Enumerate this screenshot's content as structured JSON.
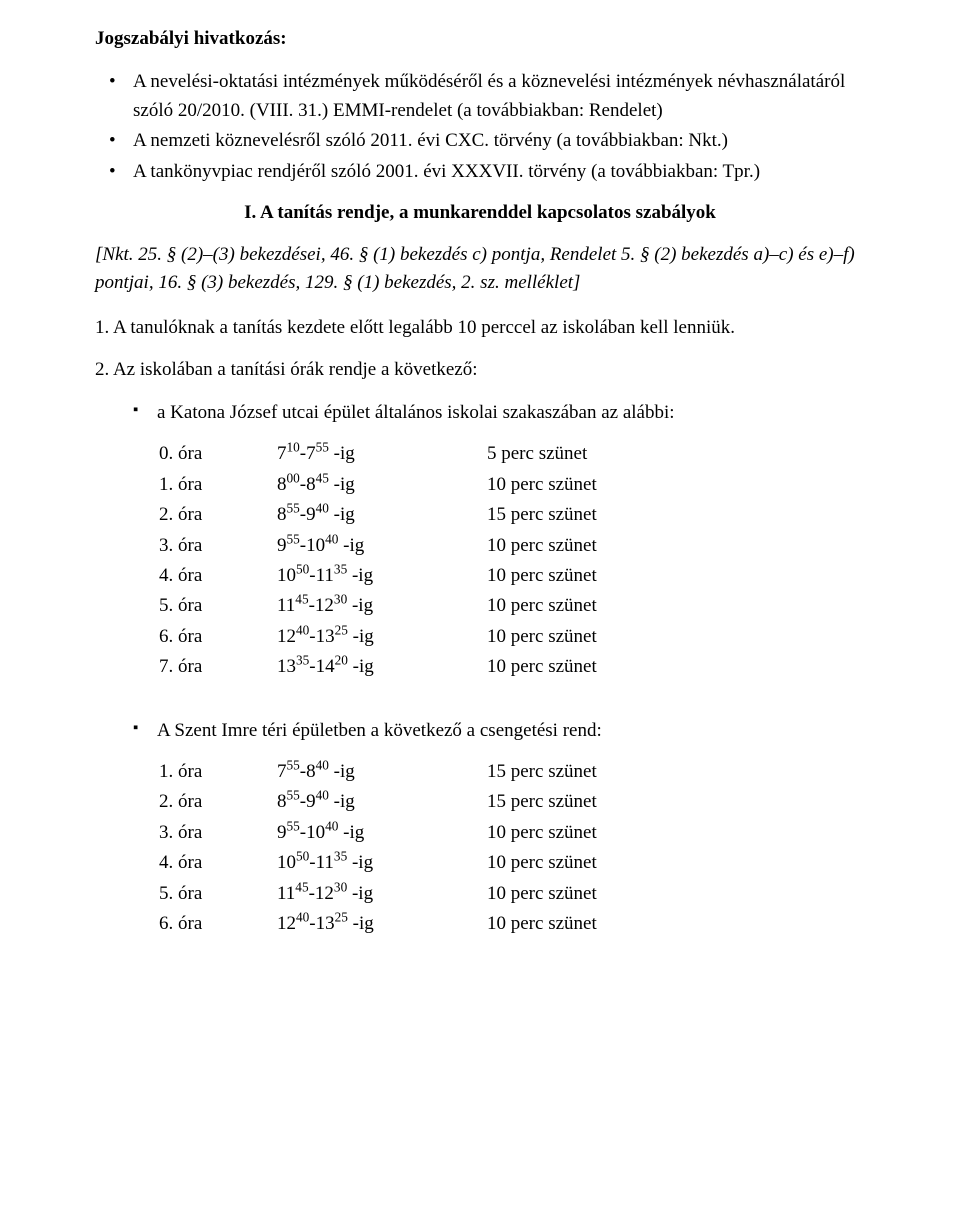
{
  "heading": "Jogszabályi hivatkozás:",
  "refs": [
    "A nevelési-oktatási intézmények működéséről és a köznevelési intézmények névhasználatáról szóló 20/2010. (VIII. 31.) EMMI-rendelet (a továbbiakban: Rendelet)",
    "A nemzeti köznevelésről szóló 2011. évi CXC. törvény (a továbbiakban: Nkt.)",
    "A tankönyvpiac rendjéről szóló 2001. évi XXXVII. törvény (a továbbiakban: Tpr.)"
  ],
  "section_title": "I. A tanítás rendje, a munkarenddel kapcsolatos szabályok",
  "italic_ref": "[Nkt. 25. § (2)–(3) bekezdései, 46. § (1) bekezdés c) pontja, Rendelet 5. § (2) bekezdés a)–c) és e)–f) pontjai, 16. § (3) bekezdés, 129. § (1) bekezdés, 2. sz. melléklet]",
  "para1": "1. A tanulóknak a tanítás kezdete előtt legalább 10 perccel az iskolában kell lenniük.",
  "para2": "2. Az iskolában a tanítási órák rendje a következő:",
  "sub1": "a Katona József utcai épület általános iskolai szakaszában az alábbi:",
  "schedule1": [
    {
      "label": "0. óra",
      "s1": "10",
      "s2": "55",
      "base": "7",
      "sep": "-7",
      "break": "5 perc szünet"
    },
    {
      "label": "1. óra",
      "s1": "00",
      "s2": "45",
      "base": "8",
      "sep": "-8",
      "break": "10 perc szünet"
    },
    {
      "label": "2. óra",
      "s1": "55",
      "s2": "40",
      "base": "8",
      "sep": "-9",
      "break": "15 perc szünet"
    },
    {
      "label": "3. óra",
      "s1": "55",
      "s2": "40",
      "base": "9",
      "sep": "-10",
      "break": "10 perc szünet"
    },
    {
      "label": "4. óra",
      "s1": "50",
      "s2": "35",
      "base": "10",
      "sep": "-11",
      "break": "10 perc szünet"
    },
    {
      "label": "5. óra",
      "s1": "45",
      "s2": "30",
      "base": "11",
      "sep": "-12",
      "break": "10 perc szünet"
    },
    {
      "label": "6. óra",
      "s1": "40",
      "s2": "25",
      "base": "12",
      "sep": "-13",
      "break": "10 perc szünet"
    },
    {
      "label": "7. óra",
      "s1": "35",
      "s2": "20",
      "base": "13",
      "sep": "-14",
      "break": "10 perc szünet"
    }
  ],
  "sub2": "A Szent Imre téri épületben a következő a csengetési rend:",
  "schedule2": [
    {
      "label": "1. óra",
      "s1": "55",
      "s2": "40",
      "base": "7",
      "sep": "-8",
      "break": "15 perc szünet"
    },
    {
      "label": "2. óra",
      "s1": "55",
      "s2": "40",
      "base": "8",
      "sep": "-9",
      "break": "15 perc szünet"
    },
    {
      "label": "3. óra",
      "s1": "55",
      "s2": "40",
      "base": "9",
      "sep": "-10",
      "break": "10 perc szünet"
    },
    {
      "label": "4. óra",
      "s1": "50",
      "s2": "35",
      "base": "10",
      "sep": "-11",
      "break": "10 perc szünet"
    },
    {
      "label": "5. óra",
      "s1": "45",
      "s2": "30",
      "base": "11",
      "sep": "-12",
      "break": "10 perc szünet"
    },
    {
      "label": "6. óra",
      "s1": "40",
      "s2": "25",
      "base": "12",
      "sep": "-13",
      "break": "10 perc szünet"
    }
  ],
  "time_suffix": " -ig"
}
